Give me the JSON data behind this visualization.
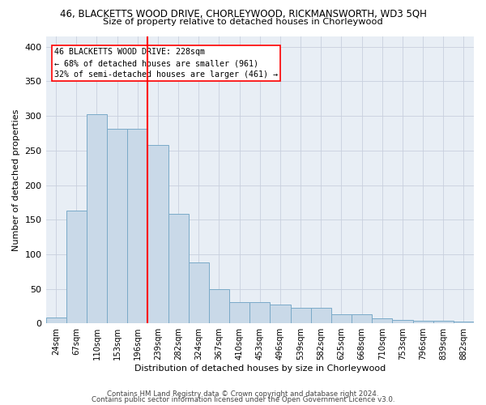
{
  "title": "46, BLACKETTS WOOD DRIVE, CHORLEYWOOD, RICKMANSWORTH, WD3 5QH",
  "subtitle": "Size of property relative to detached houses in Chorleywood",
  "xlabel": "Distribution of detached houses by size in Chorleywood",
  "ylabel": "Number of detached properties",
  "bar_color": "#c9d9e8",
  "bar_edge_color": "#7aaac8",
  "grid_color": "#c8d0de",
  "bg_color": "#e8eef5",
  "categories": [
    "24sqm",
    "67sqm",
    "110sqm",
    "153sqm",
    "196sqm",
    "239sqm",
    "282sqm",
    "324sqm",
    "367sqm",
    "410sqm",
    "453sqm",
    "496sqm",
    "539sqm",
    "582sqm",
    "625sqm",
    "668sqm",
    "710sqm",
    "753sqm",
    "796sqm",
    "839sqm",
    "882sqm"
  ],
  "values": [
    9,
    163,
    303,
    282,
    281,
    258,
    158,
    88,
    49,
    31,
    31,
    27,
    23,
    23,
    13,
    13,
    7,
    5,
    4,
    4,
    3
  ],
  "marker_index": 4,
  "marker_label_lines": [
    "46 BLACKETTS WOOD DRIVE: 228sqm",
    "← 68% of detached houses are smaller (961)",
    "32% of semi-detached houses are larger (461) →"
  ],
  "ylim": [
    0,
    415
  ],
  "yticks": [
    0,
    50,
    100,
    150,
    200,
    250,
    300,
    350,
    400
  ],
  "footnote1": "Contains HM Land Registry data © Crown copyright and database right 2024.",
  "footnote2": "Contains public sector information licensed under the Open Government Licence v3.0."
}
